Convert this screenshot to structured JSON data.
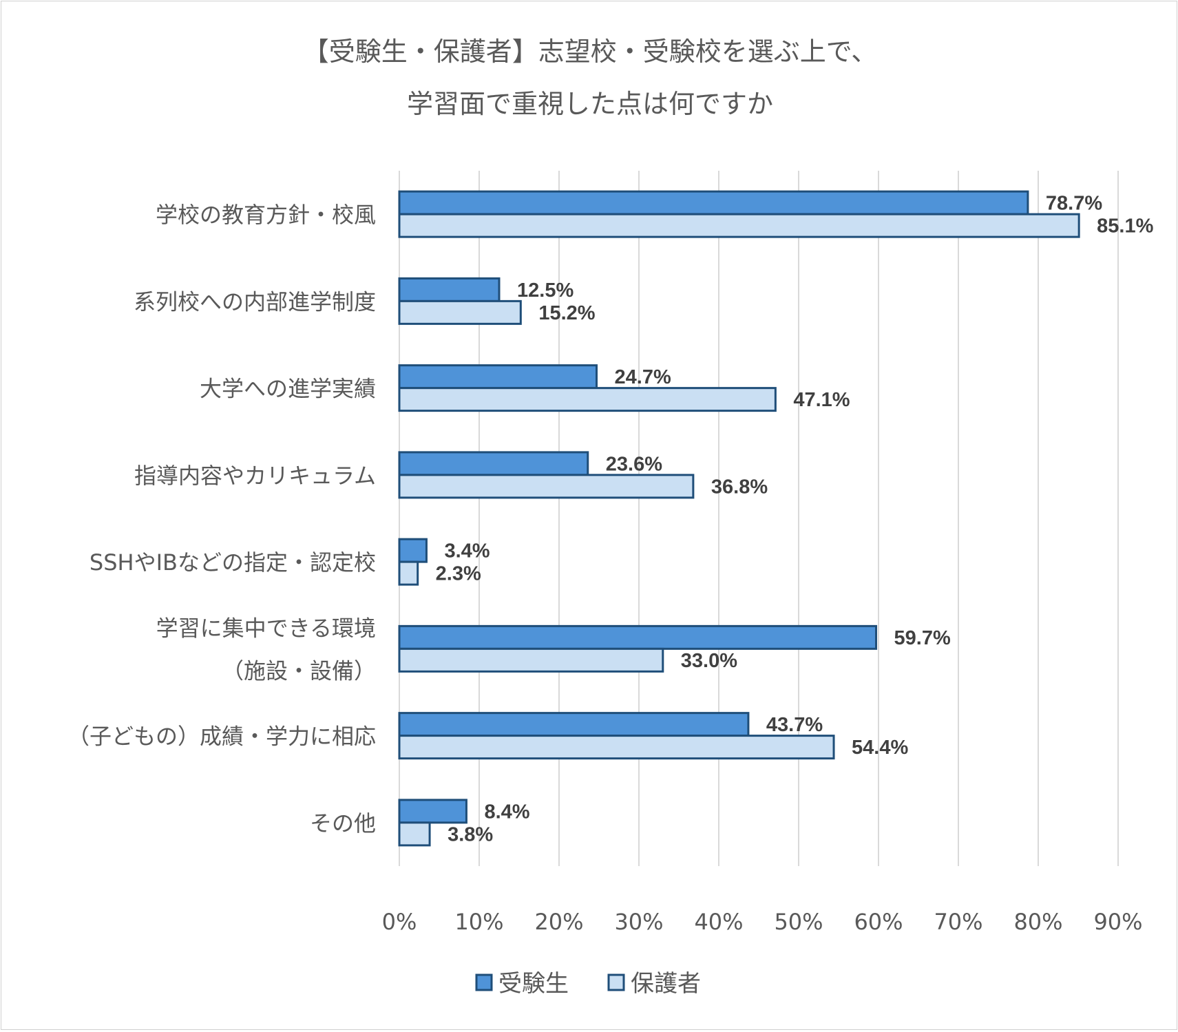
{
  "chart_data": {
    "type": "bar",
    "orientation": "horizontal",
    "title_lines": [
      "【受験生・保護者】志望校・受験校を選ぶ上で、",
      "学習面で重視した点は何ですか"
    ],
    "categories": [
      [
        "学校の教育方針・校風"
      ],
      [
        "系列校への内部進学制度"
      ],
      [
        "大学への進学実績"
      ],
      [
        "指導内容やカリキュラム"
      ],
      [
        "SSHやIBなどの指定・認定校"
      ],
      [
        "学習に集中できる環境",
        "（施設・設備）"
      ],
      [
        "（子どもの）成績・学力に相応"
      ],
      [
        "その他"
      ]
    ],
    "series": [
      {
        "name": "受験生",
        "color": "#4f93d8",
        "values": [
          78.7,
          12.5,
          24.7,
          23.6,
          3.4,
          59.7,
          43.7,
          8.4
        ],
        "labels": [
          "78.7%",
          "12.5%",
          "24.7%",
          "23.6%",
          "3.4%",
          "59.7%",
          "43.7%",
          "8.4%"
        ]
      },
      {
        "name": "保護者",
        "color": "#cadff3",
        "values": [
          85.1,
          15.2,
          47.1,
          36.8,
          2.3,
          33.0,
          54.4,
          3.8
        ],
        "labels": [
          "85.1%",
          "15.2%",
          "47.1%",
          "36.8%",
          "2.3%",
          "33.0%",
          "54.4%",
          "3.8%"
        ]
      }
    ],
    "xlim": [
      0,
      90
    ],
    "xticks": [
      "0%",
      "10%",
      "20%",
      "30%",
      "40%",
      "50%",
      "60%",
      "70%",
      "80%",
      "90%"
    ],
    "bar_border_color": "#1f4e79",
    "grid": true,
    "legend_position": "bottom"
  }
}
